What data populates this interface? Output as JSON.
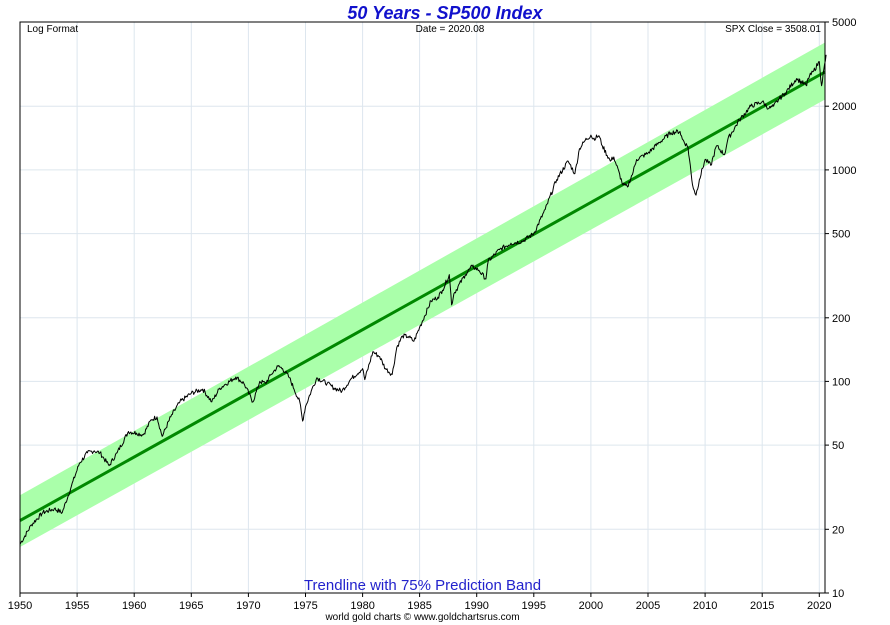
{
  "header": {
    "title": "50 Years - SP500 Index",
    "log_label": "Log Format",
    "date_label": "Date = 2020.08",
    "close_label": "SPX Close = 3508.01"
  },
  "footer": {
    "subtitle": "Trendline with 75% Prediction Band",
    "credit": "world gold charts © www.goldchartsrus.com"
  },
  "colors": {
    "title": "#1111cc",
    "band": "#aaffaa",
    "trend": "#008800",
    "price": "#000000",
    "grid": "#dde6ee"
  },
  "chart_data": {
    "type": "line",
    "y_scale": "log",
    "grid": true,
    "xlim": [
      1950,
      2020.5
    ],
    "ylim": [
      10,
      5000
    ],
    "x_ticks": [
      1950,
      1955,
      1960,
      1965,
      1970,
      1975,
      1980,
      1985,
      1990,
      1995,
      2000,
      2005,
      2010,
      2015,
      2020
    ],
    "y_ticks": [
      10,
      20,
      50,
      100,
      200,
      500,
      1000,
      2000,
      5000
    ],
    "trend": {
      "x": [
        1950,
        2020.5
      ],
      "y": [
        22,
        2900
      ]
    },
    "band_upper": {
      "x": [
        1950,
        2020.5
      ],
      "y": [
        29,
        4000
      ]
    },
    "band_lower": {
      "x": [
        1950,
        2020.5
      ],
      "y": [
        16.5,
        2150
      ]
    },
    "series": [
      {
        "x": [
          1950.0,
          1951.0,
          1952.0,
          1953.0,
          1953.7,
          1954.5,
          1955.2,
          1955.9,
          1956.5,
          1957.0,
          1957.8,
          1958.5,
          1959.5,
          1960.2,
          1960.8,
          1961.5,
          1962.0,
          1962.45,
          1963.2,
          1964.0,
          1965.0,
          1966.0,
          1966.8,
          1967.5,
          1968.0,
          1968.9,
          1969.6,
          1970.4,
          1971.0,
          1971.5,
          1972.0,
          1972.6,
          1973.0,
          1973.6,
          1974.0,
          1974.5,
          1974.75,
          1975.0,
          1975.5,
          1976.0,
          1976.9,
          1977.5,
          1978.2,
          1979.0,
          1980.0,
          1980.2,
          1980.9,
          1981.5,
          1982.0,
          1982.6,
          1983.0,
          1983.5,
          1984.0,
          1984.5,
          1985.0,
          1986.0,
          1986.6,
          1987.0,
          1987.6,
          1987.8,
          1988.0,
          1989.0,
          1989.6,
          1990.2,
          1990.8,
          1991.0,
          1992.0,
          1993.0,
          1994.0,
          1995.0,
          1996.0,
          1997.0,
          1998.0,
          1998.6,
          1999.0,
          1999.5,
          2000.0,
          2000.2,
          2000.7,
          2001.0,
          2001.7,
          2002.0,
          2002.8,
          2003.2,
          2003.7,
          2004.0,
          2005.0,
          2006.0,
          2007.0,
          2007.8,
          2008.0,
          2008.5,
          2008.9,
          2009.2,
          2009.5,
          2010.0,
          2010.5,
          2011.0,
          2011.7,
          2012.0,
          2013.0,
          2014.0,
          2015.0,
          2015.6,
          2016.0,
          2016.5,
          2017.0,
          2018.0,
          2018.9,
          2019.0,
          2019.5,
          2020.0,
          2020.2,
          2020.6
        ],
        "y": [
          17,
          21,
          24,
          25,
          24,
          32,
          41,
          46,
          47,
          46,
          40,
          46,
          58,
          57,
          56,
          66,
          68,
          55,
          68,
          80,
          88,
          92,
          80,
          93,
          97,
          105,
          98,
          80,
          100,
          98,
          108,
          118,
          115,
          104,
          92,
          80,
          65,
          76,
          90,
          104,
          98,
          93,
          90,
          103,
          115,
          102,
          138,
          131,
          115,
          108,
          145,
          164,
          163,
          155,
          180,
          240,
          250,
          270,
          320,
          230,
          260,
          320,
          350,
          335,
          305,
          370,
          420,
          450,
          460,
          500,
          650,
          900,
          1100,
          960,
          1260,
          1380,
          1460,
          1400,
          1450,
          1300,
          1100,
          1150,
          850,
          830,
          980,
          1120,
          1200,
          1350,
          1500,
          1520,
          1400,
          1280,
          850,
          760,
          900,
          1120,
          1050,
          1300,
          1180,
          1400,
          1720,
          2000,
          2100,
          1950,
          2000,
          2170,
          2300,
          2700,
          2500,
          2700,
          2930,
          3250,
          2500,
          3500
        ]
      }
    ]
  }
}
